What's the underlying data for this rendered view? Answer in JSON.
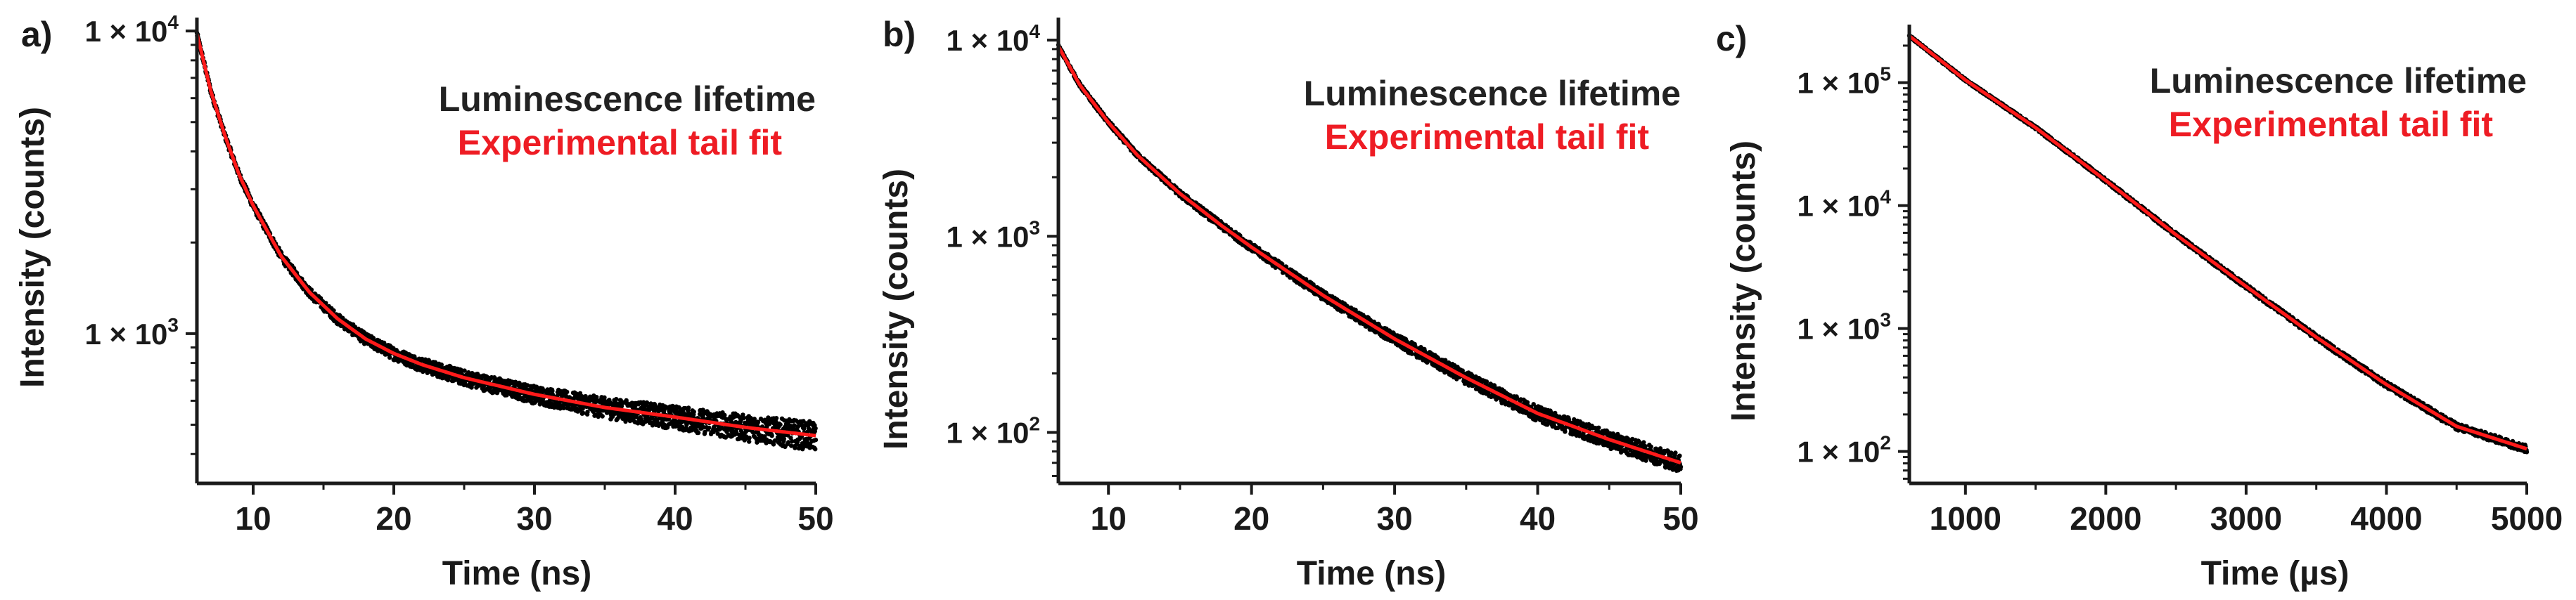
{
  "chart_data": [
    {
      "type": "scatter",
      "panel_label": "a)",
      "xlabel": "Time (ns)",
      "ylabel": "Intensity (counts)",
      "xlim": [
        6,
        50
      ],
      "ylim": [
        320,
        10500
      ],
      "y_scale": "log",
      "x_ticks": [
        10,
        20,
        30,
        40,
        50
      ],
      "x_tick_labels": [
        "10",
        "20",
        "30",
        "40",
        "50"
      ],
      "y_ticks": [
        1000,
        10000
      ],
      "y_tick_labels": [
        {
          "base": "1 × 10",
          "exp": "3"
        },
        {
          "base": "1 × 10",
          "exp": "4"
        }
      ],
      "legend": {
        "position": "top-right",
        "entries": [
          {
            "name": "Luminescence lifetime",
            "color": "#222222"
          },
          {
            "name": "Experimental tail fit",
            "color": "#ee1c24"
          }
        ]
      },
      "series": [
        {
          "name": "Luminescence lifetime",
          "kind": "points",
          "x": [
            6,
            7,
            8,
            9,
            10,
            12,
            14,
            16,
            18,
            20,
            22,
            25,
            30,
            35,
            40,
            45,
            50
          ],
          "values": [
            9800,
            6300,
            4500,
            3350,
            2650,
            1800,
            1370,
            1120,
            960,
            860,
            790,
            715,
            630,
            570,
            530,
            490,
            460
          ]
        },
        {
          "name": "Experimental tail fit",
          "kind": "line",
          "x": [
            6,
            7,
            8,
            9,
            10,
            12,
            14,
            16,
            18,
            20,
            22,
            25,
            30,
            35,
            40,
            45,
            50
          ],
          "values": [
            9800,
            6300,
            4500,
            3350,
            2650,
            1800,
            1370,
            1120,
            960,
            860,
            790,
            715,
            630,
            570,
            530,
            490,
            460
          ]
        }
      ]
    },
    {
      "type": "scatter",
      "panel_label": "b)",
      "xlabel": "Time (ns)",
      "ylabel": "Intensity (counts)",
      "xlim": [
        6.5,
        50
      ],
      "ylim": [
        55,
        12000
      ],
      "y_scale": "log",
      "x_ticks": [
        10,
        20,
        30,
        40,
        50
      ],
      "x_tick_labels": [
        "10",
        "20",
        "30",
        "40",
        "50"
      ],
      "y_ticks": [
        100,
        1000,
        10000
      ],
      "y_tick_labels": [
        {
          "base": "1 × 10",
          "exp": "2"
        },
        {
          "base": "1 × 10",
          "exp": "3"
        },
        {
          "base": "1 × 10",
          "exp": "4"
        }
      ],
      "legend": {
        "position": "top-right",
        "entries": [
          {
            "name": "Luminescence lifetime",
            "color": "#222222"
          },
          {
            "name": "Experimental tail fit",
            "color": "#ee1c24"
          }
        ]
      },
      "series": [
        {
          "name": "Luminescence lifetime",
          "kind": "points",
          "x": [
            6.5,
            8,
            10,
            12,
            15,
            18,
            20,
            25,
            30,
            35,
            40,
            45,
            50
          ],
          "values": [
            9300,
            5900,
            3800,
            2600,
            1650,
            1120,
            880,
            500,
            300,
            190,
            125,
            92,
            70
          ]
        },
        {
          "name": "Experimental tail fit",
          "kind": "line",
          "x": [
            6.5,
            8,
            10,
            12,
            15,
            18,
            20,
            25,
            30,
            35,
            40,
            45,
            50
          ],
          "values": [
            9300,
            5900,
            3800,
            2600,
            1650,
            1120,
            880,
            500,
            300,
            190,
            125,
            92,
            70
          ]
        }
      ]
    },
    {
      "type": "scatter",
      "panel_label": "c)",
      "xlabel": "Time (µs)",
      "ylabel": "Intensity (counts)",
      "xlim": [
        600,
        5000
      ],
      "ylim": [
        55,
        260000
      ],
      "y_scale": "log",
      "x_ticks": [
        1000,
        2000,
        3000,
        4000,
        5000
      ],
      "x_tick_labels": [
        "1000",
        "2000",
        "3000",
        "4000",
        "5000"
      ],
      "y_ticks": [
        100,
        1000,
        10000,
        100000
      ],
      "y_tick_labels": [
        {
          "base": "1 × 10",
          "exp": "2"
        },
        {
          "base": "1 × 10",
          "exp": "3"
        },
        {
          "base": "1 × 10",
          "exp": "4"
        },
        {
          "base": "1 × 10",
          "exp": "5"
        }
      ],
      "legend": {
        "position": "top-right",
        "entries": [
          {
            "name": "Luminescence lifetime",
            "color": "#222222"
          },
          {
            "name": "Experimental tail fit",
            "color": "#ee1c24"
          }
        ]
      },
      "series": [
        {
          "name": "Luminescence lifetime",
          "kind": "points",
          "x": [
            600,
            1000,
            1500,
            2000,
            2500,
            3000,
            3500,
            4000,
            4500,
            5000
          ],
          "values": [
            240000,
            105000,
            43000,
            16000,
            5800,
            2200,
            850,
            350,
            160,
            105
          ]
        },
        {
          "name": "Experimental tail fit",
          "kind": "line",
          "x": [
            600,
            1000,
            1500,
            2000,
            2500,
            3000,
            3500,
            4000,
            4500,
            5000
          ],
          "values": [
            240000,
            105000,
            43000,
            16000,
            5800,
            2200,
            850,
            350,
            160,
            105
          ]
        }
      ]
    }
  ]
}
